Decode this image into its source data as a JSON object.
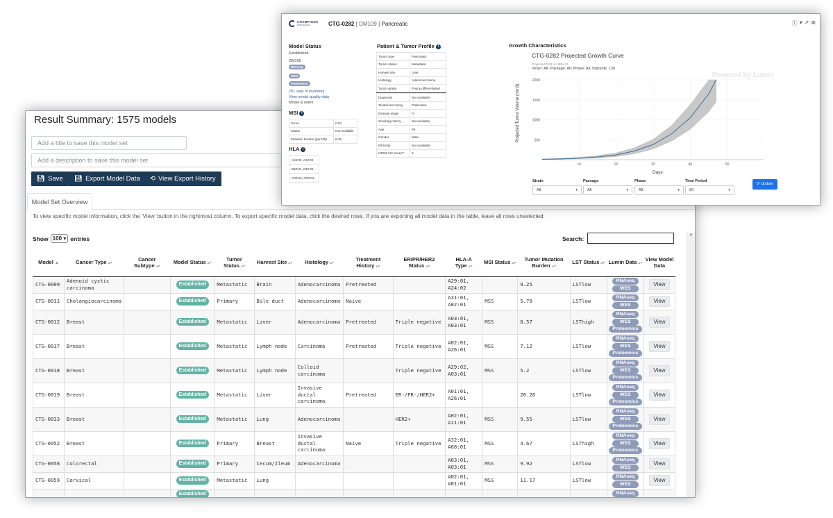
{
  "result_summary": {
    "title": "Result Summary: 1575 models",
    "title_placeholder": "Add a title to save this model set",
    "description_placeholder": "Add a description to save this model set",
    "buttons": {
      "save": "Save",
      "export": "Export Model Data",
      "history": "View Export History"
    },
    "tab": "Model Set Overview",
    "instructions": "To view specific model information, click the 'View' button in the rightmost column. To export specific model data, click the desired rows. If you are exporting all model data in the table, leave all rows unselected.",
    "show_label": "Show",
    "show_value": "100",
    "entries_label": "entries",
    "search_label": "Search:",
    "columns": [
      "Model",
      "Cancer Type",
      "Cancer Subtype",
      "Model Status",
      "Tumor Status",
      "Harvest Site",
      "Histology",
      "Treatment History",
      "ER/PR/HER2 Status",
      "HLA-A Type",
      "MSI Status",
      "Tumor Mutation Burden",
      "LST Status",
      "Lumin Data",
      "View Model Data"
    ],
    "view_label": "View",
    "rows": [
      {
        "model": "CTG-0009",
        "cancer_type": "Adenoid cystic carcinoma",
        "subtype": "",
        "status": "Established",
        "tumor_status": "Metastatic",
        "site": "Brain",
        "histology": "Adenocarcinoma",
        "treatment": "Pretreated",
        "erpr": "",
        "hla": "A29:01, A24:02",
        "msi": "",
        "tmb": "9.25",
        "lst": "LSTlow",
        "lumin": [
          "RNAseq",
          "WES"
        ]
      },
      {
        "model": "CTG-0011",
        "cancer_type": "Cholangiocarcinoma",
        "subtype": "",
        "status": "Established",
        "tumor_status": "Primary",
        "site": "Bile duct",
        "histology": "Adenocarcinoma",
        "treatment": "Naive",
        "erpr": "",
        "hla": "A31:01, A02:01",
        "msi": "MSS",
        "tmb": "5.78",
        "lst": "LSTlow",
        "lumin": [
          "RNAseq",
          "WES"
        ]
      },
      {
        "model": "CTG-0012",
        "cancer_type": "Breast",
        "subtype": "",
        "status": "Established",
        "tumor_status": "Metastatic",
        "site": "Liver",
        "histology": "Adenocarcinoma",
        "treatment": "Pretreated",
        "erpr": "Triple negative",
        "hla": "A03:01, A03:01",
        "msi": "MSS",
        "tmb": "8.57",
        "lst": "LSThigh",
        "lumin": [
          "RNAseq",
          "WES",
          "Proteomics"
        ]
      },
      {
        "model": "CTG-0017",
        "cancer_type": "Breast",
        "subtype": "",
        "status": "Established",
        "tumor_status": "Metastatic",
        "site": "Lymph node",
        "histology": "Carcinoma",
        "treatment": "Pretreated",
        "erpr": "Triple negative",
        "hla": "A02:01, A26:01",
        "msi": "MSS",
        "tmb": "7.12",
        "lst": "LSTlow",
        "lumin": [
          "RNAseq",
          "WES",
          "Proteomics"
        ]
      },
      {
        "model": "CTG-0018",
        "cancer_type": "Breast",
        "subtype": "",
        "status": "Established",
        "tumor_status": "Metastatic",
        "site": "Lymph node",
        "histology": "Colloid carcinoma",
        "treatment": "",
        "erpr": "Triple negative",
        "hla": "A29:02, A03:01",
        "msi": "MSS",
        "tmb": "5.2",
        "lst": "LSTlow",
        "lumin": [
          "RNAseq",
          "WES",
          "Proteomics"
        ]
      },
      {
        "model": "CTG-0019",
        "cancer_type": "Breast",
        "subtype": "",
        "status": "Established",
        "tumor_status": "Metastatic",
        "site": "Liver",
        "histology": "Invasive ductal carcinoma",
        "treatment": "Pretreated",
        "erpr": "ER-/PR-/HER2+",
        "hla": "A01:01, A26:01",
        "msi": "",
        "tmb": "20.26",
        "lst": "LSTlow",
        "lumin": [
          "RNAseq",
          "WES",
          "Proteomics"
        ]
      },
      {
        "model": "CTG-0033",
        "cancer_type": "Breast",
        "subtype": "",
        "status": "Established",
        "tumor_status": "Metastatic",
        "site": "Lung",
        "histology": "Adenocarcinoma",
        "treatment": "",
        "erpr": "HER2+",
        "hla": "A02:01, A11:01",
        "msi": "MSS",
        "tmb": "9.55",
        "lst": "LSTlow",
        "lumin": [
          "RNAseq",
          "WES",
          "Proteomics"
        ]
      },
      {
        "model": "CTG-0052",
        "cancer_type": "Breast",
        "subtype": "",
        "status": "Established",
        "tumor_status": "Primary",
        "site": "Breast",
        "histology": "Invasive ductal carcinoma",
        "treatment": "Naive",
        "erpr": "Triple negative",
        "hla": "A32:01, A68:01",
        "msi": "MSS",
        "tmb": "4.67",
        "lst": "LSThigh",
        "lumin": [
          "RNAseq",
          "WES",
          "Proteomics"
        ]
      },
      {
        "model": "CTG-0058",
        "cancer_type": "Colorectal",
        "subtype": "",
        "status": "Established",
        "tumor_status": "Primary",
        "site": "Cecum/Ileum",
        "histology": "Adenocarcinoma",
        "treatment": "",
        "erpr": "",
        "hla": "A03:01, A03:01",
        "msi": "MSS",
        "tmb": "9.92",
        "lst": "LSTlow",
        "lumin": [
          "RNAseq",
          "WES"
        ]
      },
      {
        "model": "CTG-0059",
        "cancer_type": "Cervical",
        "subtype": "",
        "status": "Established",
        "tumor_status": "Metastatic",
        "site": "Lung",
        "histology": "",
        "treatment": "",
        "erpr": "",
        "hla": "A02:01, A01:01",
        "msi": "MSS",
        "tmb": "11.17",
        "lst": "LSTlow",
        "lumin": [
          "RNAseq",
          "WES"
        ]
      },
      {
        "model": "",
        "cancer_type": "",
        "subtype": "",
        "status": "Established",
        "tumor_status": "",
        "site": "",
        "histology": "",
        "treatment": "",
        "erpr": "",
        "hla": "",
        "msi": "",
        "tmb": "",
        "lst": "",
        "lumin": [
          "RNAseq"
        ]
      }
    ]
  },
  "detail": {
    "logo_text_1": "CHAMPIONS",
    "logo_text_2": "ONCOLOGY",
    "model_id": "CTG-0282",
    "model_sub": "[ DM109 ]",
    "model_type": "Pancreatic",
    "model_status": {
      "title": "Model Status",
      "status": "Established",
      "dm": "DM109",
      "pills": [
        "RNAseq",
        "WES",
        "Proteomics"
      ],
      "vials": "201 vials in inventory",
      "quality": "View model quality data",
      "warm": "Model is warm"
    },
    "msi": {
      "title": "MSI",
      "rows": [
        [
          "Score",
          "0.94"
        ],
        [
          "Status",
          "Not available"
        ],
        [
          "Mutation burden (per Mb)",
          "8.29"
        ]
      ]
    },
    "hla": {
      "title": "HLA",
      "rows": [
        "A24:02, A24:02",
        "B40:01, B40:01",
        "C03:04, C03:04"
      ]
    },
    "profile": {
      "title": "Patient & Tumor Profile",
      "rows_top": [
        [
          "Tumor type",
          "Pancreatic"
        ],
        [
          "Tumor status",
          "Metastatic"
        ],
        [
          "Harvest site",
          "Liver"
        ],
        [
          "Histology",
          "Adenocarcinoma"
        ],
        [
          "Tumor grade",
          "Poorly differentiated"
        ]
      ],
      "rows_bottom": [
        [
          "Diagnosis",
          "Not available"
        ],
        [
          "Treatment history",
          "Pretreated"
        ],
        [
          "Disease stage",
          "IV"
        ],
        [
          "Smoking history",
          "Not available"
        ],
        [
          "Age",
          "59"
        ],
        [
          "Gender",
          "Male"
        ],
        [
          "Ethnicity",
          "Not available"
        ],
        [
          "HER2 IHC score**",
          "0"
        ]
      ]
    },
    "growth": {
      "section_title": "Growth Characteristics",
      "chart_title": "CTG-0282 Projected Growth Curve",
      "chart_sub1": "Projected TVM +/- 95% CI",
      "chart_sub2": "Strain: All; Passage: All; Phase: All; Implants: 136",
      "watermark": "Powered by Lumin"
    },
    "controls": [
      {
        "label": "Strain",
        "value": "All"
      },
      {
        "label": "Passage",
        "value": "All"
      },
      {
        "label": "Phase",
        "value": "All"
      },
      {
        "label": "Time Period",
        "value": "60"
      }
    ],
    "update_label": "Update"
  },
  "chart_data": {
    "type": "line",
    "title": "CTG-0282 Projected Growth Curve",
    "xlabel": "Days",
    "ylabel": "Projected Tumor Volume (mm3)",
    "xlim": [
      0,
      60
    ],
    "ylim": [
      0,
      2000
    ],
    "x_ticks": [
      10,
      20,
      30,
      40,
      50
    ],
    "y_ticks": [
      500,
      1000,
      1500,
      2000
    ],
    "series": [
      {
        "x": [
          0,
          5,
          10,
          15,
          20,
          25,
          30,
          35,
          40,
          45,
          47
        ],
        "y": [
          10,
          20,
          40,
          70,
          120,
          220,
          380,
          650,
          1050,
          1650,
          2000
        ],
        "ci_low": [
          5,
          12,
          25,
          45,
          80,
          150,
          270,
          470,
          760,
          1200,
          1450
        ],
        "ci_high": [
          18,
          32,
          60,
          100,
          170,
          300,
          510,
          860,
          1380,
          2000,
          2000
        ]
      }
    ]
  },
  "colors": {
    "primary_button": "#1d3a57",
    "established_badge": "#63b3a5",
    "lumin_badge": "#8e9bb9",
    "update_button": "#1a73e8",
    "curve": "#3c6e9e",
    "ci_band": "#c8c8c8"
  }
}
